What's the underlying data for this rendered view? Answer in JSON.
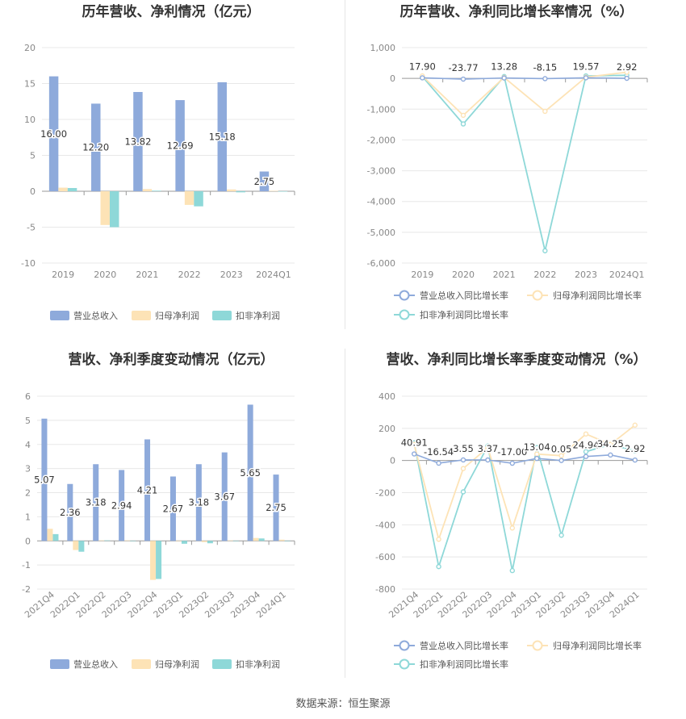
{
  "source": "数据来源：恒生聚源",
  "colors": {
    "revenue": "#8eaadb",
    "net_profit": "#fde3b6",
    "deducted": "#8ed8d8",
    "rev_growth_line": "#8eaadb",
    "np_growth_line": "#fde3b6",
    "ded_growth_line": "#8ed8d8"
  },
  "chart_data": [
    {
      "id": "annual-bars",
      "type": "bar",
      "title": "历年营收、净利情况（亿元）",
      "categories": [
        "2019",
        "2020",
        "2021",
        "2022",
        "2023",
        "2024Q1"
      ],
      "ylim": [
        -10,
        20
      ],
      "yticks": [
        20,
        15,
        10,
        5,
        0,
        -5,
        -10
      ],
      "series": [
        {
          "name": "营业总收入",
          "values": [
            16.0,
            12.2,
            13.82,
            12.69,
            15.18,
            2.75
          ],
          "labels": [
            "16.00",
            "12.20",
            "13.82",
            "12.69",
            "15.18",
            "2.75"
          ]
        },
        {
          "name": "归母净利润",
          "values": [
            0.5,
            -4.7,
            0.3,
            -1.9,
            0.25,
            0.05
          ]
        },
        {
          "name": "扣非净利润",
          "values": [
            0.45,
            -5.0,
            0.08,
            -2.1,
            -0.15,
            0.0
          ]
        }
      ],
      "legend": "bottom",
      "grid": true
    },
    {
      "id": "annual-growth",
      "type": "line",
      "title": "历年营收、净利同比增长率情况（%）",
      "categories": [
        "2019",
        "2020",
        "2021",
        "2022",
        "2023",
        "2024Q1"
      ],
      "ylim": [
        -6000,
        1000
      ],
      "yticks": [
        1000,
        0,
        -1000,
        -2000,
        -3000,
        -4000,
        -5000,
        -6000
      ],
      "ytick_labels": [
        "1,000",
        "0",
        "-1,000",
        "-2,000",
        "-3,000",
        "-4,000",
        "-5,000",
        "-6,000"
      ],
      "series": [
        {
          "name": "营业总收入同比增长率",
          "values": [
            17.9,
            -23.77,
            13.28,
            -8.15,
            19.57,
            2.92
          ],
          "labels": [
            "17.90",
            "-23.77",
            "13.28",
            "-8.15",
            "19.57",
            "2.92"
          ]
        },
        {
          "name": "归母净利润同比增长率",
          "values": [
            80,
            -1200,
            30,
            -1070,
            40,
            200
          ]
        },
        {
          "name": "扣非净利润同比增长率",
          "values": [
            60,
            -1480,
            60,
            -5600,
            80,
            100
          ]
        }
      ],
      "legend": "bottom",
      "grid": true
    },
    {
      "id": "quarterly-bars",
      "type": "bar",
      "title": "营收、净利季度变动情况（亿元）",
      "categories": [
        "2021Q4",
        "2022Q1",
        "2022Q2",
        "2022Q3",
        "2022Q4",
        "2023Q1",
        "2023Q2",
        "2023Q3",
        "2023Q4",
        "2024Q1"
      ],
      "ylim": [
        -2,
        6
      ],
      "yticks": [
        6,
        5,
        4,
        3,
        2,
        1,
        0,
        -1,
        -2
      ],
      "series": [
        {
          "name": "营业总收入",
          "values": [
            5.07,
            2.36,
            3.18,
            2.94,
            4.21,
            2.67,
            3.18,
            3.67,
            5.65,
            2.75
          ],
          "labels": [
            "5.07",
            "2.36",
            "3.18",
            "2.94",
            "4.21",
            "2.67",
            "3.18",
            "3.67",
            "5.65",
            "2.75"
          ]
        },
        {
          "name": "归母净利润",
          "values": [
            0.5,
            -0.38,
            0.02,
            0.02,
            -1.62,
            0.0,
            -0.05,
            0.02,
            0.12,
            0.05
          ]
        },
        {
          "name": "扣非净利润",
          "values": [
            0.28,
            -0.45,
            0.02,
            0.0,
            -1.58,
            -0.12,
            -0.1,
            0.0,
            0.1,
            0.0
          ]
        }
      ],
      "legend": "bottom",
      "grid": true
    },
    {
      "id": "quarterly-growth",
      "type": "line",
      "title": "营收、净利同比增长率季度变动情况（%）",
      "categories": [
        "2021Q4",
        "2022Q1",
        "2022Q2",
        "2022Q3",
        "2022Q4",
        "2023Q1",
        "2023Q2",
        "2023Q3",
        "2023Q4",
        "2024Q1"
      ],
      "ylim": [
        -800,
        400
      ],
      "yticks": [
        400,
        200,
        0,
        -200,
        -400,
        -600,
        -800
      ],
      "ytick_labels": [
        "400",
        "200",
        "0",
        "-200",
        "-400",
        "-600",
        "-800"
      ],
      "series": [
        {
          "name": "营业总收入同比增长率",
          "values": [
            40.91,
            -16.54,
            3.55,
            3.37,
            -17.0,
            13.04,
            0.05,
            24.94,
            34.25,
            2.92
          ],
          "labels": [
            "40.91",
            "-16.54",
            "3.55",
            "3.37",
            "-17.00",
            "13.04",
            "0.05",
            "24.94",
            "34.25",
            "2.92"
          ]
        },
        {
          "name": "归母净利润同比增长率",
          "values": [
            100,
            -490,
            -50,
            80,
            -420,
            40,
            30,
            165,
            100,
            220
          ]
        },
        {
          "name": "扣非净利润同比增长率",
          "values": [
            110,
            -660,
            -195,
            90,
            -685,
            80,
            -465,
            55,
            100,
            60
          ]
        }
      ],
      "legend": "bottom",
      "grid": true
    }
  ]
}
